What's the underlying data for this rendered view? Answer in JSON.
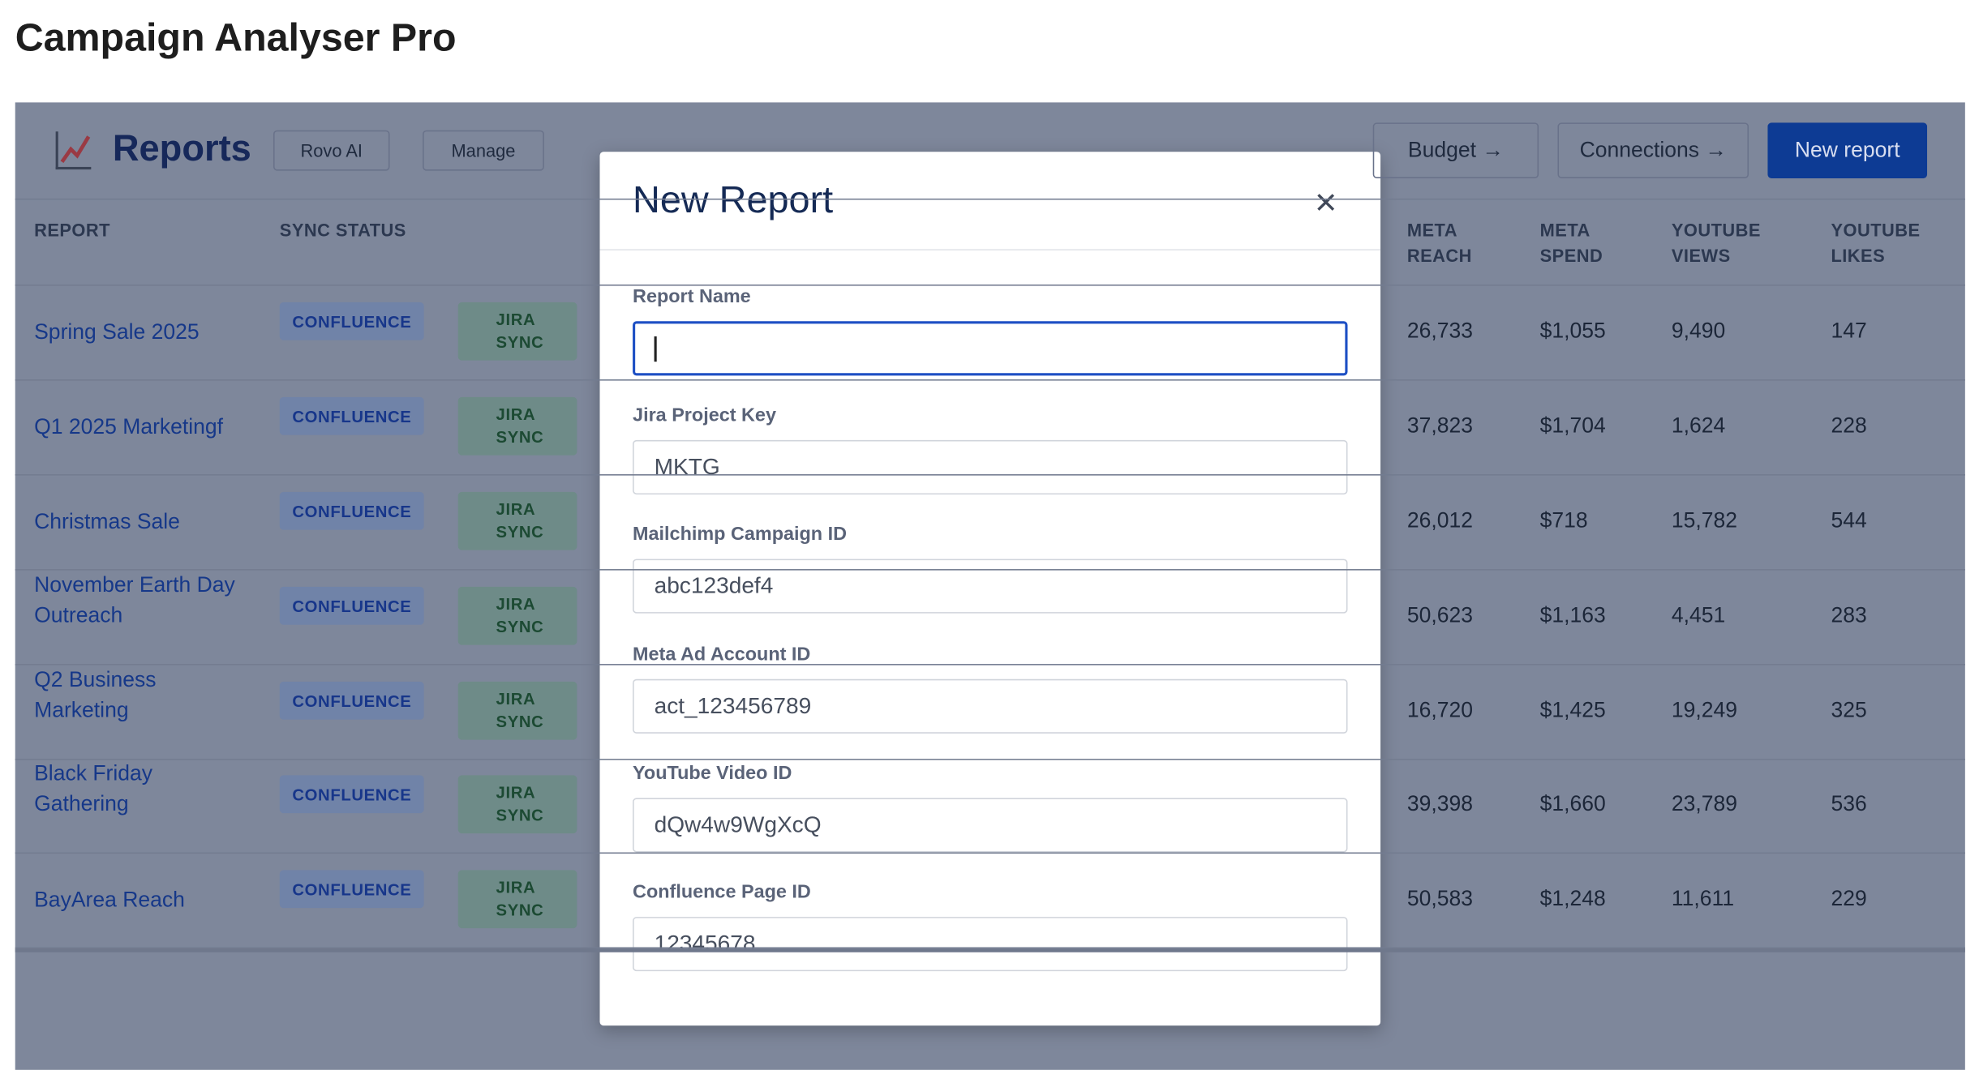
{
  "header": {
    "title": "Campaign Analyser Pro"
  },
  "toolbar": {
    "title": "Reports",
    "buttons_left": [
      "Rovo AI",
      "Manage"
    ],
    "buttons_right": [
      "Budget →",
      "Connections →"
    ],
    "primary": "New report"
  },
  "table": {
    "columns": [
      "REPORT",
      "SYNC STATUS",
      "META REACH",
      "META SPEND",
      "YOUTUBE VIEWS",
      "YOUTUBE LIKES"
    ],
    "rows": [
      [
        "Spring Sale 2025",
        [
          "CONFLUENCE",
          "JIRA SYNC"
        ],
        "26,733",
        "$1,055",
        "9,490",
        "147"
      ],
      [
        "Q1 2025 Marketingf",
        [
          "CONFLUENCE",
          "JIRA SYNC"
        ],
        "37,823",
        "$1,704",
        "1,624",
        "228"
      ],
      [
        "Christmas Sale",
        [
          "CONFLUENCE",
          "JIRA SYNC"
        ],
        "26,012",
        "$718",
        "15,782",
        "544"
      ],
      [
        "November Earth Day Outreach",
        [
          "CONFLUENCE",
          "JIRA SYNC"
        ],
        "50,623",
        "$1,163",
        "4,451",
        "283"
      ],
      [
        "Q2 Business Marketing",
        [
          "CONFLUENCE",
          "JIRA SYNC"
        ],
        "16,720",
        "$1,425",
        "19,249",
        "325"
      ],
      [
        "Black Friday Gathering",
        [
          "CONFLUENCE",
          "JIRA SYNC"
        ],
        "39,398",
        "$1,660",
        "23,789",
        "536"
      ],
      [
        "BayArea Reach",
        [
          "CONFLUENCE",
          "JIRA SYNC"
        ],
        "50,583",
        "$1,248",
        "11,611",
        "229"
      ]
    ]
  },
  "modal": {
    "title": "New Report",
    "close": "×",
    "fields": [
      {
        "label": "Report Name"
      },
      {
        "label": "Jira Project Key",
        "value": "MKTG"
      },
      {
        "label": "Mailchimp Campaign ID",
        "value": "abc123def4"
      },
      {
        "label": "Meta Ad Account ID",
        "value": "act_123456789"
      },
      {
        "label": "YouTube Video ID",
        "value": "dQw4w9WgXcQ"
      },
      {
        "label": "Confluence Page ID",
        "value": "12345678"
      }
    ]
  }
}
